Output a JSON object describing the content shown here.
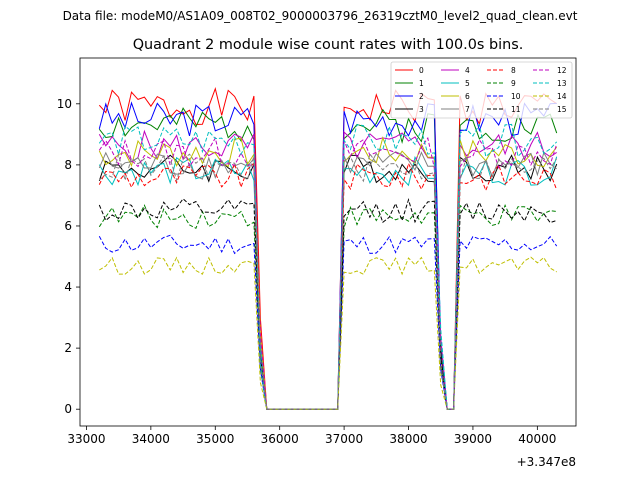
{
  "chart_data": {
    "type": "line",
    "suptitle": "Data file: modeM0/AS1A09_008T02_9000003796_26319cztM0_level2_quad_clean.evt",
    "title": "Quadrant 2 module wise count rates with 100.0s bins.",
    "xlabel": "",
    "ylabel": "",
    "offset_text": "+3.347e8",
    "xlim": [
      32900,
      40600
    ],
    "ylim": [
      -0.55,
      11.5
    ],
    "xticks": [
      33000,
      34000,
      35000,
      36000,
      37000,
      38000,
      39000,
      40000
    ],
    "yticks": [
      0,
      2,
      4,
      6,
      8,
      10
    ],
    "grid": false,
    "legend_position": "upper-right",
    "legend_columns": 4,
    "x_start": 33200,
    "x_step": 100,
    "x_end": 40300,
    "gaps": [
      {
        "down_at": [
          35700
        ],
        "zero_from": 35800,
        "zero_to": 36900,
        "up_at": [
          37000
        ]
      },
      {
        "down_at": [
          38500,
          38600
        ],
        "zero_from": 38600,
        "zero_to": 38700,
        "up_at": [
          38800
        ]
      }
    ],
    "series": [
      {
        "name": "0",
        "color": "#ff0000",
        "style": "solid",
        "level": 9.9
      },
      {
        "name": "1",
        "color": "#008000",
        "style": "solid",
        "level": 9.3
      },
      {
        "name": "2",
        "color": "#0000ff",
        "style": "solid",
        "level": 9.5
      },
      {
        "name": "3",
        "color": "#000000",
        "style": "solid",
        "level": 7.9
      },
      {
        "name": "4",
        "color": "#bf00bf",
        "style": "solid",
        "level": 8.6
      },
      {
        "name": "5",
        "color": "#00bfbf",
        "style": "solid",
        "level": 7.8
      },
      {
        "name": "6",
        "color": "#bfbf00",
        "style": "solid",
        "level": 8.4
      },
      {
        "name": "7",
        "color": "#808080",
        "style": "solid",
        "level": 8.0
      },
      {
        "name": "8",
        "color": "#ff0000",
        "style": "dashed",
        "level": 7.6
      },
      {
        "name": "9",
        "color": "#008000",
        "style": "dashed",
        "level": 6.3
      },
      {
        "name": "10",
        "color": "#0000ff",
        "style": "dashed",
        "level": 5.4
      },
      {
        "name": "11",
        "color": "#000000",
        "style": "dashed",
        "level": 6.5
      },
      {
        "name": "12",
        "color": "#bf00bf",
        "style": "dashed",
        "level": 8.4
      },
      {
        "name": "13",
        "color": "#00bfbf",
        "style": "dashed",
        "level": 8.8
      },
      {
        "name": "14",
        "color": "#bfbf00",
        "style": "dashed",
        "level": 4.7
      },
      {
        "name": "15",
        "color": "#808080",
        "style": "dashed",
        "level": 7.9
      }
    ]
  }
}
